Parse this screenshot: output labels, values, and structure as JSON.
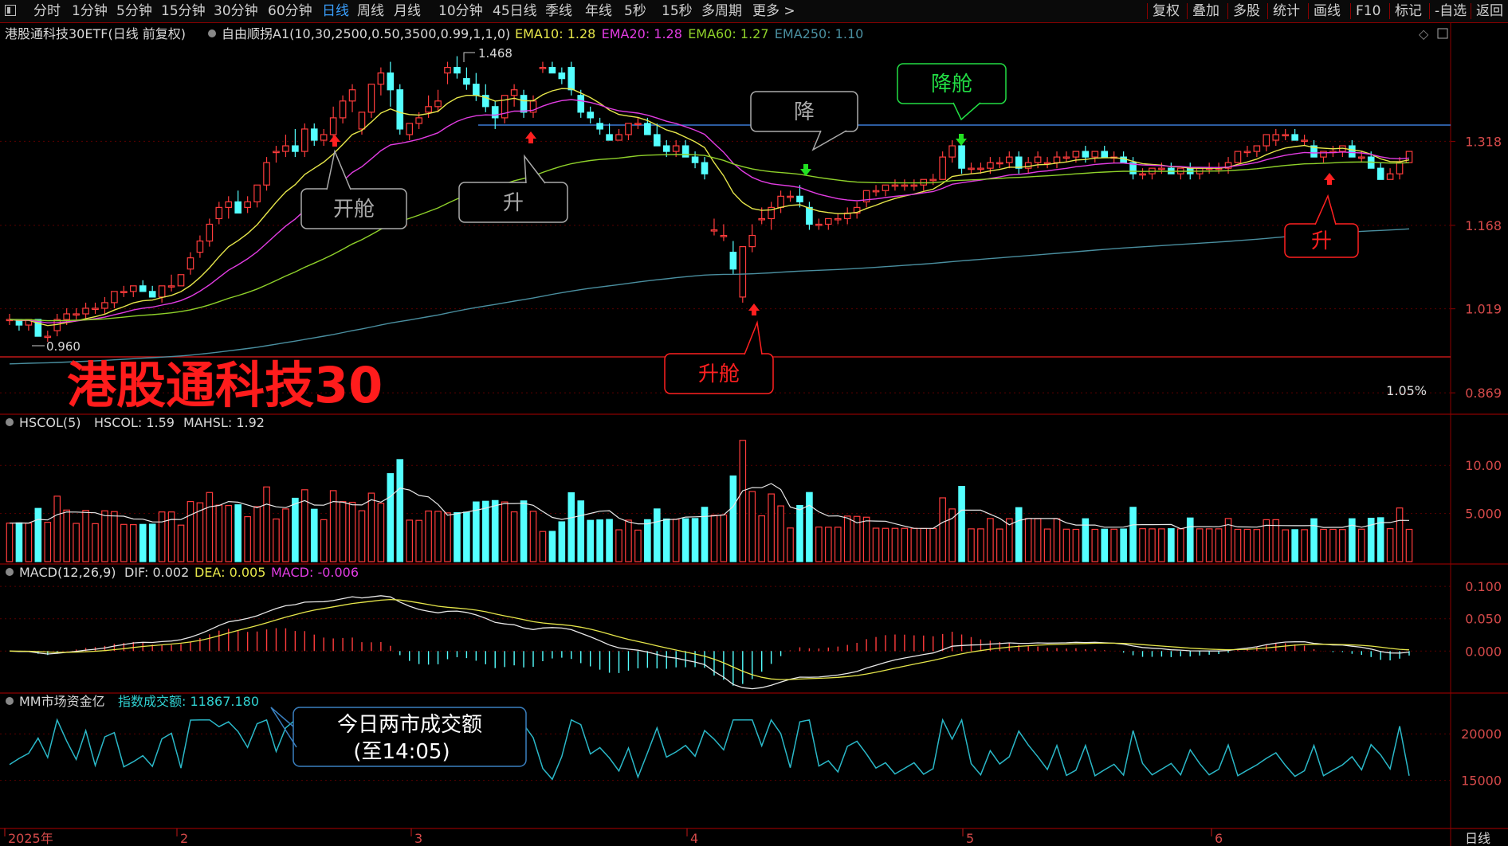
{
  "toolbar": {
    "periods": [
      "分时",
      "1分钟",
      "5分钟",
      "15分钟",
      "30分钟",
      "60分钟",
      "日线",
      "周线",
      "月线",
      "10分钟",
      "45日线",
      "季线",
      "年线",
      "5秒",
      "15秒",
      "多周期",
      "更多 >"
    ],
    "active": "日线",
    "right_buttons": [
      "复权",
      "叠加",
      "多股",
      "统计",
      "画线",
      "F10",
      "标记",
      "-自选",
      "返回"
    ]
  },
  "main_panel": {
    "title": "港股通科技30ETF(日线 前复权)",
    "indicator": "自由顺拐A1(10,30,2500,0.50,3500,0.99,1,1,0)",
    "ema": [
      {
        "label": "EMA10:",
        "value": "1.28",
        "color": "#e6e64a"
      },
      {
        "label": "EMA20:",
        "value": "1.28",
        "color": "#e23ce2"
      },
      {
        "label": "EMA60:",
        "value": "1.27",
        "color": "#8fd12a"
      },
      {
        "label": "EMA250:",
        "value": "1.10",
        "color": "#4a8fa0"
      }
    ],
    "y_ticks": [
      "1.318",
      "1.168",
      "1.019",
      "0.869"
    ],
    "watermark": "港股通科技30",
    "percent": "1.05%",
    "high_label": "1.468",
    "low_label": "0.960",
    "callouts": {
      "kaicang": "开舱",
      "sheng1": "升",
      "jiang": "降",
      "jiangcang": "降舱",
      "shengcang": "升舱",
      "sheng2": "升"
    }
  },
  "volume_panel": {
    "label": "HSCOL(5)",
    "hscol": "HSCOL: 1.59",
    "mahsl": "MAHSL: 1.92",
    "y_ticks": [
      "10.00",
      "5.000"
    ]
  },
  "macd_panel": {
    "label": "MACD(12,26,9)",
    "dif": "DIF: 0.002",
    "dea": "DEA: 0.005",
    "macd": "MACD: -0.006",
    "y_ticks": [
      "0.100",
      "0.050",
      "0.000"
    ]
  },
  "money_panel": {
    "label": "MM市场资金亿",
    "value_label": "指数成交额: 11867.180",
    "y_ticks": [
      "20000",
      "15000"
    ],
    "callout_line1": "今日两市成交额",
    "callout_line2": "(至14:05)"
  },
  "x_axis": {
    "labels": [
      "2025年",
      "2",
      "3",
      "4",
      "5",
      "6"
    ],
    "right_label": "日线"
  },
  "chart_data": {
    "type": "candlestick",
    "title": "港股通科技30ETF(日线 前复权)",
    "dates_note": "2025年 daily",
    "ylim": [
      0.84,
      1.49
    ],
    "y_ticks": [
      1.318,
      1.168,
      1.019,
      0.869
    ],
    "ohlc": [
      [
        1.0,
        1.01,
        0.99,
        1.0
      ],
      [
        1.0,
        1.0,
        0.98,
        0.99
      ],
      [
        0.99,
        1.0,
        0.98,
        1.0
      ],
      [
        1.0,
        1.0,
        0.97,
        0.97
      ],
      [
        0.97,
        0.98,
        0.96,
        0.97
      ],
      [
        0.98,
        1.01,
        0.97,
        1.0
      ],
      [
        1.0,
        1.02,
        0.99,
        1.01
      ],
      [
        1.01,
        1.02,
        1.0,
        1.01
      ],
      [
        1.01,
        1.03,
        1.0,
        1.02
      ],
      [
        1.02,
        1.03,
        1.01,
        1.02
      ],
      [
        1.02,
        1.04,
        1.01,
        1.03
      ],
      [
        1.03,
        1.05,
        1.02,
        1.05
      ],
      [
        1.05,
        1.06,
        1.04,
        1.05
      ],
      [
        1.05,
        1.06,
        1.04,
        1.06
      ],
      [
        1.06,
        1.07,
        1.05,
        1.05
      ],
      [
        1.05,
        1.06,
        1.04,
        1.04
      ],
      [
        1.04,
        1.06,
        1.03,
        1.06
      ],
      [
        1.06,
        1.08,
        1.05,
        1.06
      ],
      [
        1.06,
        1.08,
        1.06,
        1.08
      ],
      [
        1.09,
        1.12,
        1.08,
        1.11
      ],
      [
        1.12,
        1.15,
        1.11,
        1.14
      ],
      [
        1.14,
        1.18,
        1.13,
        1.17
      ],
      [
        1.18,
        1.21,
        1.17,
        1.2
      ],
      [
        1.2,
        1.22,
        1.18,
        1.21
      ],
      [
        1.21,
        1.23,
        1.19,
        1.19
      ],
      [
        1.2,
        1.22,
        1.19,
        1.21
      ],
      [
        1.21,
        1.24,
        1.2,
        1.24
      ],
      [
        1.24,
        1.29,
        1.23,
        1.28
      ],
      [
        1.3,
        1.31,
        1.28,
        1.3
      ],
      [
        1.3,
        1.33,
        1.29,
        1.31
      ],
      [
        1.31,
        1.34,
        1.29,
        1.3
      ],
      [
        1.3,
        1.35,
        1.29,
        1.34
      ],
      [
        1.34,
        1.35,
        1.31,
        1.32
      ],
      [
        1.32,
        1.34,
        1.31,
        1.33
      ],
      [
        1.33,
        1.38,
        1.32,
        1.36
      ],
      [
        1.36,
        1.4,
        1.35,
        1.39
      ],
      [
        1.39,
        1.42,
        1.37,
        1.41
      ],
      [
        1.34,
        1.37,
        1.33,
        1.37
      ],
      [
        1.37,
        1.42,
        1.36,
        1.42
      ],
      [
        1.42,
        1.45,
        1.4,
        1.44
      ],
      [
        1.44,
        1.46,
        1.38,
        1.41
      ],
      [
        1.41,
        1.42,
        1.33,
        1.34
      ],
      [
        1.33,
        1.35,
        1.32,
        1.35
      ],
      [
        1.35,
        1.37,
        1.34,
        1.36
      ],
      [
        1.37,
        1.4,
        1.36,
        1.38
      ],
      [
        1.38,
        1.41,
        1.37,
        1.39
      ],
      [
        1.44,
        1.46,
        1.42,
        1.45
      ],
      [
        1.45,
        1.47,
        1.43,
        1.44
      ],
      [
        1.43,
        1.45,
        1.41,
        1.42
      ],
      [
        1.42,
        1.44,
        1.39,
        1.4
      ],
      [
        1.4,
        1.42,
        1.37,
        1.38
      ],
      [
        1.38,
        1.39,
        1.34,
        1.36
      ],
      [
        1.36,
        1.4,
        1.35,
        1.4
      ],
      [
        1.4,
        1.42,
        1.38,
        1.41
      ],
      [
        1.4,
        1.41,
        1.36,
        1.37
      ],
      [
        1.37,
        1.4,
        1.36,
        1.39
      ],
      [
        1.45,
        1.46,
        1.44,
        1.45
      ],
      [
        1.45,
        1.46,
        1.44,
        1.44
      ],
      [
        1.44,
        1.45,
        1.42,
        1.43
      ],
      [
        1.45,
        1.46,
        1.4,
        1.41
      ],
      [
        1.4,
        1.41,
        1.36,
        1.37
      ],
      [
        1.37,
        1.38,
        1.35,
        1.36
      ],
      [
        1.35,
        1.36,
        1.33,
        1.34
      ],
      [
        1.33,
        1.35,
        1.32,
        1.32
      ],
      [
        1.32,
        1.34,
        1.32,
        1.33
      ],
      [
        1.33,
        1.35,
        1.32,
        1.35
      ],
      [
        1.35,
        1.36,
        1.34,
        1.35
      ],
      [
        1.35,
        1.36,
        1.33,
        1.33
      ],
      [
        1.33,
        1.35,
        1.31,
        1.31
      ],
      [
        1.31,
        1.32,
        1.29,
        1.3
      ],
      [
        1.3,
        1.32,
        1.29,
        1.31
      ],
      [
        1.31,
        1.32,
        1.29,
        1.29
      ],
      [
        1.29,
        1.3,
        1.27,
        1.28
      ],
      [
        1.28,
        1.29,
        1.25,
        1.26
      ],
      [
        1.16,
        1.18,
        1.15,
        1.16
      ],
      [
        1.15,
        1.17,
        1.14,
        1.15
      ],
      [
        1.12,
        1.14,
        1.08,
        1.09
      ],
      [
        1.04,
        1.13,
        1.03,
        1.13
      ],
      [
        1.13,
        1.17,
        1.12,
        1.15
      ],
      [
        1.18,
        1.2,
        1.17,
        1.18
      ],
      [
        1.18,
        1.21,
        1.16,
        1.2
      ],
      [
        1.2,
        1.23,
        1.19,
        1.22
      ],
      [
        1.22,
        1.23,
        1.21,
        1.22
      ],
      [
        1.22,
        1.24,
        1.2,
        1.21
      ],
      [
        1.2,
        1.21,
        1.16,
        1.17
      ],
      [
        1.17,
        1.18,
        1.16,
        1.17
      ],
      [
        1.17,
        1.18,
        1.16,
        1.18
      ],
      [
        1.18,
        1.19,
        1.17,
        1.18
      ],
      [
        1.18,
        1.2,
        1.17,
        1.19
      ],
      [
        1.19,
        1.21,
        1.18,
        1.2
      ],
      [
        1.21,
        1.23,
        1.2,
        1.23
      ],
      [
        1.23,
        1.24,
        1.22,
        1.23
      ],
      [
        1.23,
        1.24,
        1.22,
        1.24
      ],
      [
        1.24,
        1.25,
        1.23,
        1.24
      ],
      [
        1.24,
        1.25,
        1.23,
        1.24
      ],
      [
        1.24,
        1.25,
        1.23,
        1.24
      ],
      [
        1.24,
        1.25,
        1.23,
        1.25
      ],
      [
        1.25,
        1.26,
        1.24,
        1.25
      ],
      [
        1.25,
        1.3,
        1.25,
        1.29
      ],
      [
        1.29,
        1.32,
        1.28,
        1.31
      ],
      [
        1.31,
        1.32,
        1.26,
        1.27
      ],
      [
        1.27,
        1.28,
        1.26,
        1.27
      ],
      [
        1.27,
        1.28,
        1.26,
        1.27
      ],
      [
        1.27,
        1.29,
        1.26,
        1.28
      ],
      [
        1.28,
        1.29,
        1.27,
        1.28
      ],
      [
        1.28,
        1.3,
        1.27,
        1.29
      ],
      [
        1.29,
        1.3,
        1.26,
        1.27
      ],
      [
        1.27,
        1.29,
        1.26,
        1.28
      ],
      [
        1.28,
        1.3,
        1.27,
        1.29
      ],
      [
        1.28,
        1.29,
        1.27,
        1.28
      ],
      [
        1.28,
        1.3,
        1.27,
        1.29
      ],
      [
        1.29,
        1.3,
        1.28,
        1.29
      ],
      [
        1.29,
        1.3,
        1.28,
        1.3
      ],
      [
        1.3,
        1.31,
        1.28,
        1.29
      ],
      [
        1.29,
        1.3,
        1.28,
        1.3
      ],
      [
        1.3,
        1.31,
        1.29,
        1.29
      ],
      [
        1.29,
        1.3,
        1.28,
        1.29
      ],
      [
        1.29,
        1.3,
        1.28,
        1.28
      ],
      [
        1.28,
        1.29,
        1.25,
        1.26
      ],
      [
        1.26,
        1.27,
        1.25,
        1.26
      ],
      [
        1.26,
        1.27,
        1.25,
        1.27
      ],
      [
        1.27,
        1.28,
        1.26,
        1.27
      ],
      [
        1.27,
        1.28,
        1.26,
        1.26
      ],
      [
        1.26,
        1.27,
        1.25,
        1.27
      ],
      [
        1.27,
        1.28,
        1.25,
        1.26
      ],
      [
        1.26,
        1.27,
        1.25,
        1.27
      ],
      [
        1.27,
        1.28,
        1.26,
        1.27
      ],
      [
        1.27,
        1.28,
        1.26,
        1.27
      ],
      [
        1.27,
        1.29,
        1.26,
        1.28
      ],
      [
        1.28,
        1.3,
        1.28,
        1.3
      ],
      [
        1.3,
        1.31,
        1.29,
        1.3
      ],
      [
        1.3,
        1.31,
        1.29,
        1.31
      ],
      [
        1.31,
        1.33,
        1.3,
        1.33
      ],
      [
        1.32,
        1.34,
        1.31,
        1.33
      ],
      [
        1.33,
        1.34,
        1.32,
        1.33
      ],
      [
        1.33,
        1.34,
        1.32,
        1.32
      ],
      [
        1.32,
        1.33,
        1.31,
        1.32
      ],
      [
        1.31,
        1.32,
        1.29,
        1.29
      ],
      [
        1.29,
        1.3,
        1.28,
        1.3
      ],
      [
        1.3,
        1.31,
        1.29,
        1.3
      ],
      [
        1.3,
        1.31,
        1.29,
        1.31
      ],
      [
        1.31,
        1.32,
        1.29,
        1.29
      ],
      [
        1.29,
        1.3,
        1.28,
        1.29
      ],
      [
        1.29,
        1.3,
        1.27,
        1.27
      ],
      [
        1.27,
        1.28,
        1.25,
        1.25
      ],
      [
        1.25,
        1.27,
        1.25,
        1.26
      ],
      [
        1.26,
        1.29,
        1.25,
        1.28
      ],
      [
        1.28,
        1.3,
        1.28,
        1.3
      ]
    ]
  }
}
